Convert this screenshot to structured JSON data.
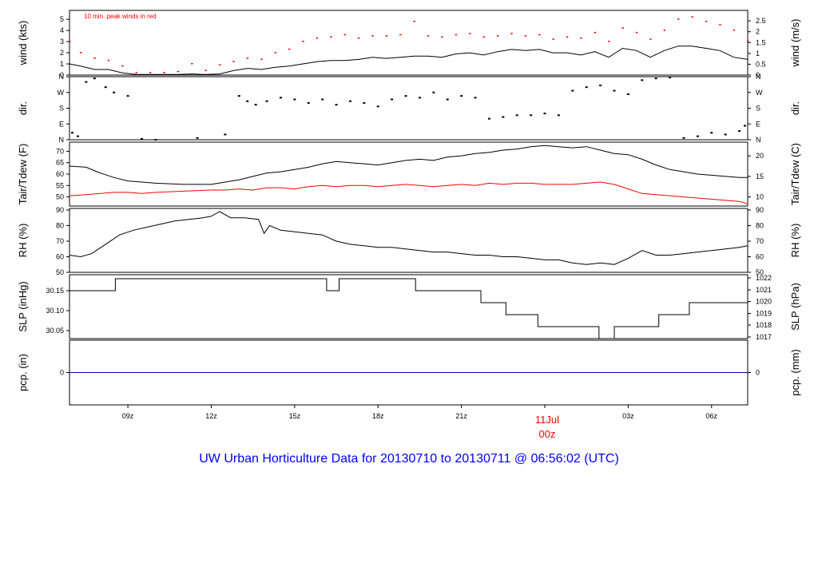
{
  "title": "UW Urban Horticulture Data for 20130710  to  20130711 @ 06:56:02  (UTC)",
  "colors": {
    "accent": "#ff0000",
    "title": "#0000ff",
    "pcp_line": "#0000cc",
    "line": "#000000"
  },
  "chart_data": [
    {
      "id": "wind",
      "type": "line",
      "ylabel_left": "wind (kts)",
      "ylabel_right": "wind (m/s)",
      "ylim": [
        0,
        5.8
      ],
      "yticks_left": [
        0,
        1,
        2,
        3,
        4,
        5
      ],
      "yticks_right": [
        {
          "label": "0",
          "value": 0
        },
        {
          "label": "0.5",
          "value": 0.972
        },
        {
          "label": "1",
          "value": 1.944
        },
        {
          "label": "1.5",
          "value": 2.916
        },
        {
          "label": "2",
          "value": 3.888
        },
        {
          "label": "2.5",
          "value": 4.86
        }
      ],
      "annotation": "10 min. peak winds in red",
      "series": [
        {
          "color": "#000000",
          "x": [
            6.9,
            7.3,
            7.8,
            8.3,
            8.8,
            9.3,
            9.8,
            10.3,
            10.8,
            11.3,
            11.8,
            12.3,
            12.8,
            13.3,
            13.8,
            14.3,
            14.8,
            15.3,
            15.8,
            16.3,
            16.8,
            17.3,
            17.8,
            18.3,
            18.8,
            19.3,
            19.8,
            20.3,
            20.8,
            21.3,
            21.8,
            22.3,
            22.8,
            23.3,
            23.8,
            24.3,
            24.8,
            25.3,
            25.8,
            26.3,
            26.8,
            27.3,
            27.8,
            28.3,
            28.8,
            29.3,
            29.8,
            30.3,
            30.8,
            31.3
          ],
          "y": [
            1.0,
            0.8,
            0.5,
            0.5,
            0.2,
            0.05,
            0.05,
            0.05,
            0.05,
            0.1,
            0.05,
            0.1,
            0.4,
            0.6,
            0.5,
            0.7,
            0.8,
            1.0,
            1.2,
            1.3,
            1.3,
            1.4,
            1.6,
            1.5,
            1.6,
            1.7,
            1.7,
            1.6,
            1.9,
            2.0,
            1.8,
            2.1,
            2.3,
            2.2,
            2.3,
            2.0,
            2.0,
            1.8,
            2.1,
            1.6,
            2.4,
            2.2,
            1.6,
            2.2,
            2.6,
            2.6,
            2.4,
            2.2,
            1.6,
            1.4
          ]
        },
        {
          "color": "#ff0000",
          "name": "10 min. peak",
          "x": [
            6.9,
            7.3,
            7.8,
            8.3,
            8.8,
            9.3,
            9.8,
            10.3,
            10.8,
            11.3,
            11.8,
            12.3,
            12.8,
            13.3,
            13.8,
            14.3,
            14.8,
            15.3,
            15.8,
            16.3,
            16.8,
            17.3,
            17.8,
            18.3,
            18.8,
            19.3,
            19.8,
            20.3,
            20.8,
            21.3,
            21.8,
            22.3,
            22.8,
            23.3,
            23.8,
            24.3,
            24.8,
            25.3,
            25.8,
            26.3,
            26.8,
            27.3,
            27.8,
            28.3,
            28.8,
            29.3,
            29.8,
            30.3,
            30.8,
            31.3
          ],
          "y": [
            3.0,
            2.0,
            1.5,
            1.3,
            0.8,
            0.2,
            0.2,
            0.2,
            0.3,
            1.0,
            0.4,
            0.9,
            1.2,
            1.5,
            1.4,
            2.0,
            2.3,
            3.0,
            3.3,
            3.4,
            3.6,
            3.3,
            3.5,
            3.5,
            3.6,
            4.8,
            3.5,
            3.4,
            3.6,
            3.7,
            3.4,
            3.5,
            3.7,
            3.5,
            3.6,
            3.2,
            3.4,
            3.3,
            3.8,
            3.0,
            4.2,
            3.8,
            3.2,
            4.0,
            5.0,
            5.2,
            4.8,
            4.5,
            4.0,
            3.0
          ]
        }
      ]
    },
    {
      "id": "dir",
      "type": "scatter",
      "ylabel_left": "dir.",
      "ylabel_right": "dir.",
      "ylim": [
        0,
        360
      ],
      "yticks_left": [
        {
          "label": "N",
          "value": 0
        },
        {
          "label": "E",
          "value": 90
        },
        {
          "label": "S",
          "value": 180
        },
        {
          "label": "W",
          "value": 270
        },
        {
          "label": "N",
          "value": 360
        }
      ],
      "yticks_right": [
        {
          "label": "N",
          "value": 0
        },
        {
          "label": "E",
          "value": 90
        },
        {
          "label": "S",
          "value": 180
        },
        {
          "label": "W",
          "value": 270
        },
        {
          "label": "N",
          "value": 360
        }
      ],
      "x": [
        7.0,
        7.2,
        7.5,
        7.8,
        8.2,
        8.5,
        9.0,
        9.5,
        10.0,
        11.5,
        12.5,
        13.0,
        13.3,
        13.6,
        14.0,
        14.5,
        15.0,
        15.5,
        16.0,
        16.5,
        17.0,
        17.5,
        18.0,
        18.5,
        19.0,
        19.5,
        20.0,
        20.5,
        21.0,
        21.5,
        22.0,
        22.5,
        23.0,
        23.5,
        24.0,
        24.5,
        25.0,
        25.5,
        26.0,
        26.5,
        27.0,
        27.5,
        28.0,
        28.5,
        29.0,
        29.5,
        30.0,
        30.5,
        31.0,
        31.2
      ],
      "y": [
        40,
        20,
        330,
        350,
        300,
        270,
        250,
        5,
        0,
        10,
        30,
        250,
        220,
        200,
        220,
        240,
        230,
        210,
        230,
        200,
        220,
        210,
        190,
        230,
        250,
        240,
        270,
        230,
        250,
        240,
        120,
        130,
        140,
        140,
        150,
        140,
        280,
        300,
        310,
        280,
        260,
        340,
        350,
        355,
        10,
        20,
        40,
        30,
        50,
        80
      ]
    },
    {
      "id": "temp",
      "type": "line",
      "ylabel_left": "Tair/Tdew (F)",
      "ylabel_right": "Tair/Tdew (C)",
      "ylim": [
        46,
        74
      ],
      "yticks_left": [
        50,
        55,
        60,
        65,
        70
      ],
      "yticks_right": [
        {
          "label": "10",
          "value": 50
        },
        {
          "label": "15",
          "value": 59
        },
        {
          "label": "20",
          "value": 68
        }
      ],
      "series": [
        {
          "name": "Tair",
          "color": "#000000",
          "x": [
            6.9,
            7.5,
            8.0,
            8.5,
            9.0,
            9.5,
            10.0,
            11.0,
            12.0,
            12.5,
            13.0,
            13.5,
            14.0,
            14.5,
            15.0,
            15.5,
            16.0,
            16.5,
            17.0,
            17.5,
            18.0,
            18.5,
            19.0,
            19.5,
            20.0,
            20.5,
            21.0,
            21.5,
            22.0,
            22.5,
            23.0,
            23.5,
            24.0,
            24.5,
            25.0,
            25.5,
            26.0,
            26.5,
            27.0,
            27.5,
            28.0,
            28.5,
            29.0,
            29.5,
            30.0,
            30.5,
            31.0,
            31.3
          ],
          "y": [
            63.5,
            63.0,
            60.5,
            58.5,
            57.0,
            56.5,
            56.0,
            55.5,
            55.5,
            56.5,
            57.5,
            59.0,
            60.5,
            61.0,
            62.0,
            63.0,
            64.5,
            65.5,
            65.0,
            64.5,
            64.0,
            65.0,
            66.0,
            66.5,
            66.0,
            67.5,
            68.0,
            69.0,
            69.5,
            70.5,
            71.0,
            72.0,
            72.5,
            72.0,
            71.5,
            72.0,
            70.5,
            69.0,
            68.5,
            66.5,
            64.0,
            62.0,
            61.0,
            60.0,
            59.5,
            59.0,
            58.5,
            58.5
          ]
        },
        {
          "name": "Tdew",
          "color": "#ff0000",
          "x": [
            6.9,
            7.5,
            8.0,
            8.5,
            9.0,
            9.5,
            10.0,
            11.0,
            12.0,
            12.5,
            13.0,
            13.5,
            14.0,
            14.5,
            15.0,
            15.5,
            16.0,
            16.5,
            17.0,
            17.5,
            18.0,
            18.5,
            19.0,
            19.5,
            20.0,
            20.5,
            21.0,
            21.5,
            22.0,
            22.5,
            23.0,
            23.5,
            24.0,
            24.5,
            25.0,
            25.5,
            26.0,
            26.5,
            27.0,
            27.5,
            28.0,
            28.5,
            29.0,
            29.5,
            30.0,
            30.5,
            31.0,
            31.3
          ],
          "y": [
            50.5,
            51.0,
            51.5,
            52.0,
            52.0,
            51.5,
            52.0,
            52.5,
            53.0,
            53.0,
            53.5,
            53.0,
            54.0,
            54.0,
            53.5,
            54.5,
            55.0,
            54.5,
            55.0,
            55.0,
            54.5,
            55.0,
            55.5,
            55.0,
            54.5,
            55.0,
            55.5,
            55.0,
            56.0,
            55.5,
            56.0,
            56.0,
            55.5,
            55.5,
            55.5,
            56.0,
            56.5,
            55.5,
            53.5,
            51.5,
            51.0,
            50.5,
            50.0,
            49.5,
            49.0,
            48.5,
            48.0,
            47.0
          ]
        }
      ]
    },
    {
      "id": "rh",
      "type": "line",
      "ylabel_left": "RH (%)",
      "ylabel_right": "RH (%)",
      "ylim": [
        50,
        91
      ],
      "yticks_left": [
        50,
        60,
        70,
        80,
        90
      ],
      "yticks_right": [
        {
          "label": "50",
          "value": 50
        },
        {
          "label": "60",
          "value": 60
        },
        {
          "label": "70",
          "value": 70
        },
        {
          "label": "80",
          "value": 80
        },
        {
          "label": "90",
          "value": 90
        }
      ],
      "series": [
        {
          "color": "#000000",
          "x": [
            6.9,
            7.3,
            7.7,
            8.2,
            8.7,
            9.2,
            9.7,
            10.2,
            10.7,
            11.2,
            11.7,
            12.0,
            12.3,
            12.7,
            13.2,
            13.7,
            13.9,
            14.1,
            14.5,
            15.0,
            15.5,
            16.0,
            16.5,
            17.0,
            17.5,
            18.0,
            18.5,
            19.0,
            19.5,
            20.0,
            20.5,
            21.0,
            21.5,
            22.0,
            22.5,
            23.0,
            23.5,
            24.0,
            24.5,
            25.0,
            25.5,
            26.0,
            26.5,
            27.0,
            27.5,
            28.0,
            28.5,
            29.0,
            29.5,
            30.0,
            30.5,
            31.0,
            31.3
          ],
          "y": [
            61,
            60,
            62,
            68,
            74,
            77,
            79,
            81,
            83,
            84,
            85,
            86,
            89,
            85,
            85,
            84,
            75,
            80,
            77,
            76,
            75,
            74,
            70,
            68,
            67,
            66,
            66,
            65,
            64,
            63,
            63,
            62,
            61,
            61,
            60,
            60,
            59,
            58,
            58,
            56,
            55,
            56,
            55,
            59,
            64,
            61,
            61,
            62,
            63,
            64,
            65,
            66,
            67
          ]
        }
      ]
    },
    {
      "id": "slp",
      "type": "line",
      "ylabel_left": "SLP (inHg)",
      "ylabel_right": "SLP (hPa)",
      "ylim": [
        30.03,
        30.19
      ],
      "yticks_left": [
        {
          "label": "30.05",
          "value": 30.05
        },
        {
          "label": "30.10",
          "value": 30.1
        },
        {
          "label": "30.15",
          "value": 30.15
        }
      ],
      "yticks_right": [
        {
          "label": "1017",
          "value": 30.034
        },
        {
          "label": "1018",
          "value": 30.064
        },
        {
          "label": "1019",
          "value": 30.093
        },
        {
          "label": "1020",
          "value": 30.123
        },
        {
          "label": "1021",
          "value": 30.152
        },
        {
          "label": "1022",
          "value": 30.182
        }
      ],
      "series": [
        {
          "color": "#000000",
          "step": true,
          "x": [
            6.9,
            8.55,
            16.15,
            16.6,
            19.35,
            21.7,
            22.6,
            23.75,
            25.95,
            26.5,
            28.1,
            29.2,
            30.3,
            31.3
          ],
          "y": [
            30.15,
            30.18,
            30.15,
            30.18,
            30.15,
            30.12,
            30.09,
            30.06,
            30.03,
            30.06,
            30.09,
            30.12,
            30.12,
            30.12
          ]
        }
      ]
    },
    {
      "id": "pcp",
      "type": "line",
      "ylabel_left": "pcp. (in)",
      "ylabel_right": "pcp. (mm)",
      "ylim": [
        -1,
        1
      ],
      "yticks_left": [
        {
          "label": "0",
          "value": 0
        }
      ],
      "yticks_right": [
        {
          "label": "0",
          "value": 0
        }
      ],
      "series": [
        {
          "color": "#0000cc",
          "x": [
            6.9,
            31.3
          ],
          "y": [
            0,
            0
          ]
        }
      ]
    }
  ],
  "x_axis": {
    "xlim": [
      6.9,
      31.3
    ],
    "ticks": [
      {
        "label": "09z",
        "value": 9
      },
      {
        "label": "12z",
        "value": 12
      },
      {
        "label": "15z",
        "value": 15
      },
      {
        "label": "18z",
        "value": 18
      },
      {
        "label": "21z",
        "value": 21
      },
      {
        "label": "03z",
        "value": 27
      },
      {
        "label": "06z",
        "value": 30
      }
    ],
    "date_marker": {
      "value": 24,
      "date": "11Jul",
      "time": "00z"
    }
  }
}
